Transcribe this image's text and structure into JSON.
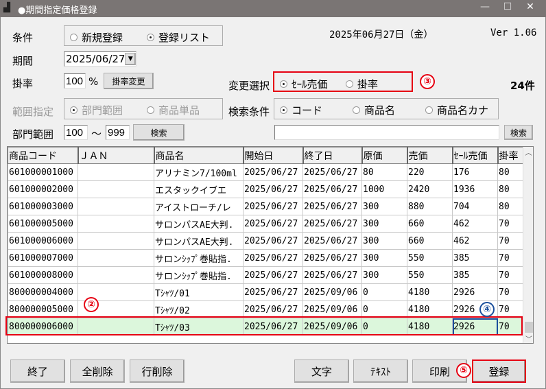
{
  "window": {
    "title": "●期間指定価格登録",
    "icon": "app-icon",
    "min": "—",
    "max": "☐",
    "close": "✕"
  },
  "condition": {
    "label": "条件",
    "options": [
      {
        "label": "新規登録",
        "checked": false
      },
      {
        "label": "登録リスト",
        "checked": true
      }
    ]
  },
  "date_display": "2025年06月27日（金）",
  "version": "Ver 1.06",
  "period": {
    "label": "期間",
    "value": "2025/06/27"
  },
  "rate": {
    "label": "掛率",
    "value": "100",
    "unit": "%",
    "button": "掛率変更"
  },
  "change_select": {
    "label": "変更選択",
    "options": [
      {
        "label": "ｾｰﾙ売価",
        "checked": true
      },
      {
        "label": "掛率",
        "checked": false
      }
    ]
  },
  "count": "24件",
  "range_spec": {
    "label": "範囲指定",
    "options": [
      {
        "label": "部門範囲",
        "checked": true
      },
      {
        "label": "商品単品",
        "checked": false
      }
    ]
  },
  "search_cond": {
    "label": "検索条件",
    "options": [
      {
        "label": "コード",
        "checked": true
      },
      {
        "label": "商品名",
        "checked": false
      },
      {
        "label": "商品名カナ",
        "checked": false
      }
    ]
  },
  "dept_range": {
    "label": "部門範囲",
    "from": "100",
    "sep": "～",
    "to": "999",
    "button": "検索"
  },
  "search": {
    "value": "",
    "button": "検索"
  },
  "annotations": {
    "a2": "②",
    "a3": "③",
    "a4": "④",
    "a5": "⑤"
  },
  "table": {
    "columns": [
      "商品コード",
      "ＪＡＮ",
      "商品名",
      "開始日",
      "終了日",
      "原価",
      "売価",
      "ｾｰﾙ売価",
      "掛率"
    ],
    "rows": [
      [
        "601000001000",
        "",
        "アリナミン7/100ml",
        "2025/06/27",
        "2025/06/27",
        "80",
        "220",
        "176",
        "80"
      ],
      [
        "601000002000",
        "",
        "エスタックイブエ",
        "2025/06/27",
        "2025/06/27",
        "1000",
        "2420",
        "1936",
        "80"
      ],
      [
        "601000003000",
        "",
        "アイストローチ/レ",
        "2025/06/27",
        "2025/06/27",
        "300",
        "880",
        "704",
        "80"
      ],
      [
        "601000005000",
        "",
        "サロンパスAE大判.",
        "2025/06/27",
        "2025/06/27",
        "300",
        "660",
        "462",
        "70"
      ],
      [
        "601000006000",
        "",
        "サロンパスAE大判.",
        "2025/06/27",
        "2025/06/27",
        "300",
        "660",
        "462",
        "70"
      ],
      [
        "601000007000",
        "",
        "サロンｼｯﾌﾟ巻貼指.",
        "2025/06/27",
        "2025/06/27",
        "300",
        "550",
        "385",
        "70"
      ],
      [
        "601000008000",
        "",
        "サロンｼｯﾌﾟ巻貼指.",
        "2025/06/27",
        "2025/06/27",
        "300",
        "550",
        "385",
        "70"
      ],
      [
        "800000004000",
        "",
        "Tｼｬﾂ/01",
        "2025/06/27",
        "2025/09/06",
        "0",
        "4180",
        "2926",
        "70"
      ],
      [
        "800000005000",
        "",
        "Tｼｬﾂ/02",
        "2025/06/27",
        "2025/09/06",
        "0",
        "4180",
        "2926",
        "70"
      ],
      [
        "800000006000",
        "",
        "Tｼｬﾂ/03",
        "2025/06/27",
        "2025/09/06",
        "0",
        "4180",
        "2926",
        "70"
      ]
    ],
    "selected_row": 9
  },
  "buttons": {
    "exit": "終了",
    "delete_all": "全削除",
    "delete_row": "行削除",
    "font": "文字",
    "text": "ﾃｷｽﾄ",
    "print": "印刷",
    "register": "登録"
  },
  "colors": {
    "highlight": "#e60012",
    "selected_row": "#dcf7dc",
    "focus": "#1a4f9c"
  }
}
